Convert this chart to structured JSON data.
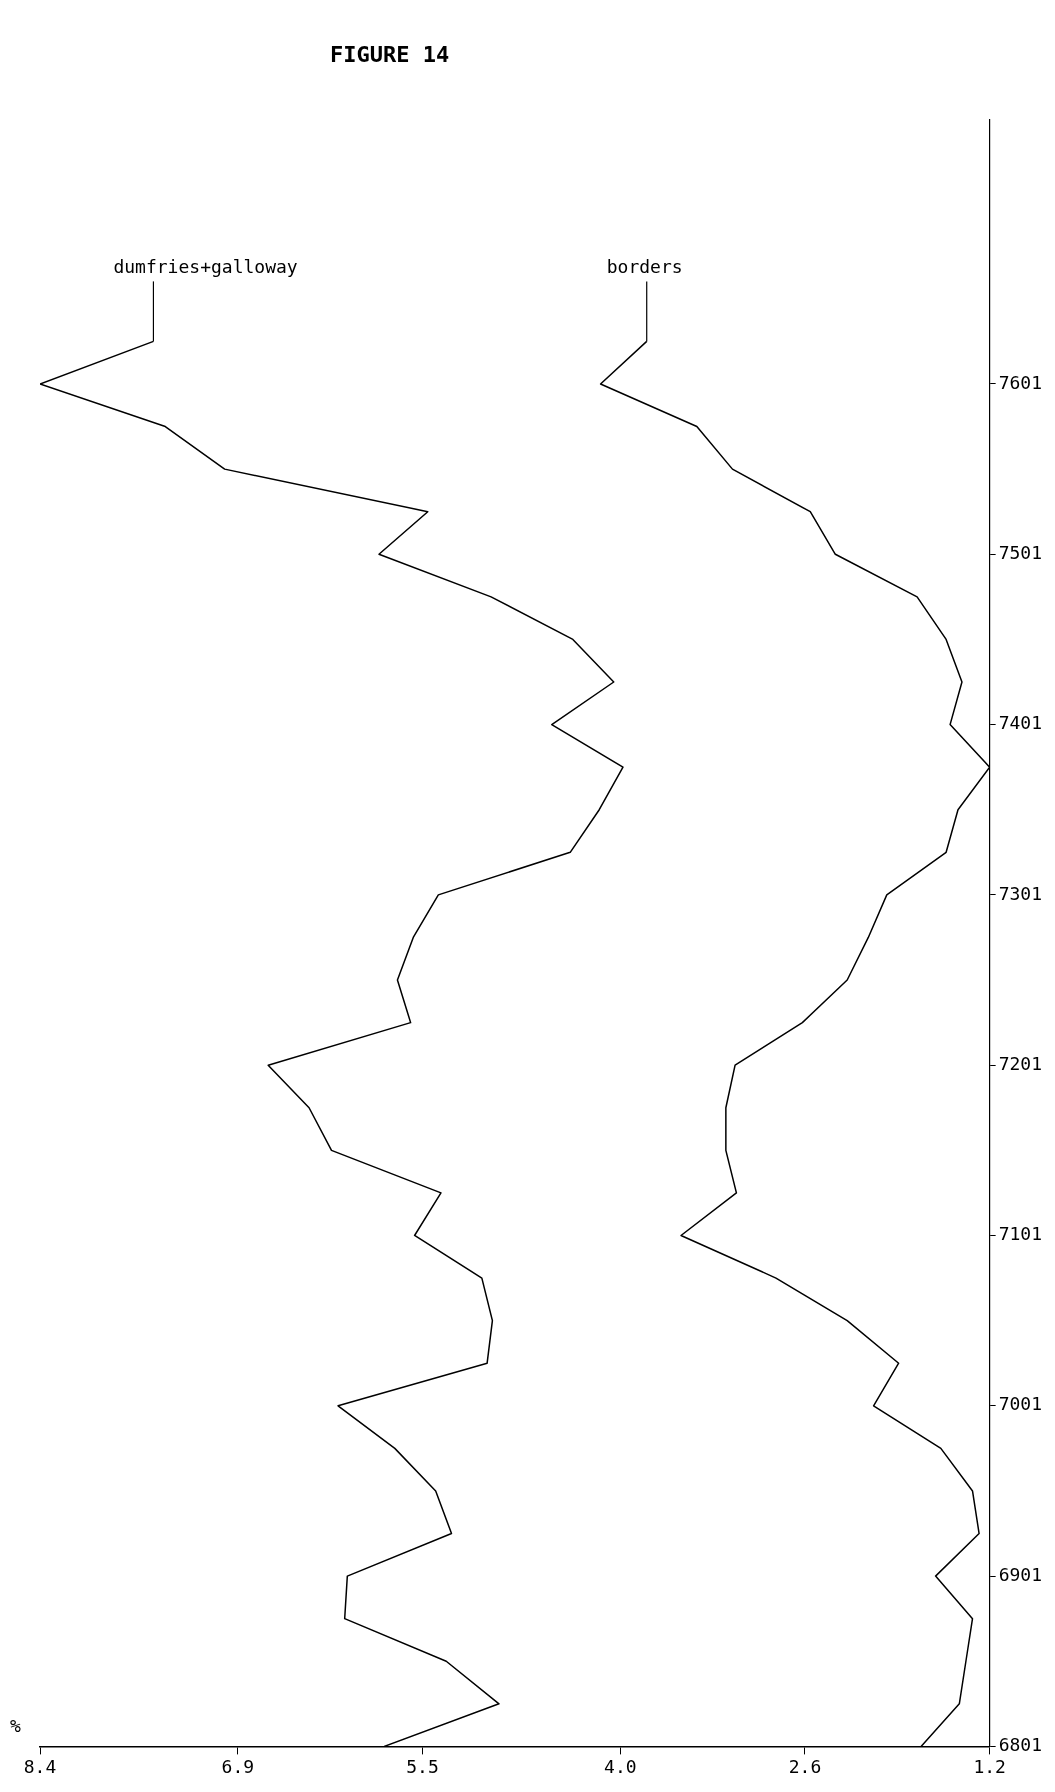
{
  "chart_data": {
    "type": "line",
    "title": "FIGURE 14",
    "xlabel": "%",
    "series": [
      {
        "name": "dumfries+galloway",
        "color": "#000000",
        "x": [
          5.79,
          4.92,
          5.32,
          6.09,
          6.07,
          5.28,
          5.4,
          5.71,
          6.14,
          5.01,
          4.97,
          5.05,
          5.56,
          5.36,
          6.19,
          6.36,
          6.67,
          5.59,
          5.69,
          5.57,
          5.38,
          4.38,
          4.16,
          3.98,
          4.52,
          4.05,
          4.36,
          4.98,
          5.83,
          5.46,
          7.0,
          7.45,
          8.4,
          7.54
        ],
        "values": [
          6801,
          6826,
          6851,
          6876,
          6901,
          6926,
          6951,
          6976,
          7001,
          7026,
          7051,
          7076,
          7101,
          7126,
          7151,
          7176,
          7201,
          7226,
          7251,
          7276,
          7301,
          7326,
          7351,
          7376,
          7401,
          7426,
          7451,
          7476,
          7501,
          7526,
          7551,
          7576,
          7601,
          7626
        ]
      },
      {
        "name": "borders",
        "color": "#000000",
        "x": [
          1.72,
          1.43,
          1.38,
          1.33,
          1.61,
          1.28,
          1.33,
          1.57,
          2.08,
          1.89,
          2.28,
          2.82,
          3.54,
          3.12,
          3.2,
          3.2,
          3.13,
          2.62,
          2.28,
          2.12,
          1.98,
          1.53,
          1.44,
          1.2,
          1.5,
          1.41,
          1.53,
          1.75,
          2.37,
          2.56,
          3.15,
          3.42,
          4.15,
          3.8
        ],
        "values": [
          6801,
          6826,
          6851,
          6876,
          6901,
          6926,
          6951,
          6976,
          7001,
          7026,
          7051,
          7076,
          7101,
          7126,
          7151,
          7176,
          7201,
          7226,
          7251,
          7276,
          7301,
          7326,
          7351,
          7376,
          7401,
          7426,
          7451,
          7476,
          7501,
          7526,
          7551,
          7576,
          7601,
          7626
        ]
      }
    ],
    "xlim": [
      8.4,
      1.2
    ],
    "xticks": [
      8.4,
      6.9,
      5.5,
      {
        "value": 4,
        "label": "4.0"
      },
      2.6,
      1.2
    ],
    "ylim": [
      6801,
      7756
    ],
    "yticks": [
      6801,
      6901,
      7001,
      7101,
      7201,
      7301,
      7401,
      7501,
      7601
    ],
    "grid": false,
    "legend": false,
    "marker": "none",
    "line_style": "solid"
  }
}
